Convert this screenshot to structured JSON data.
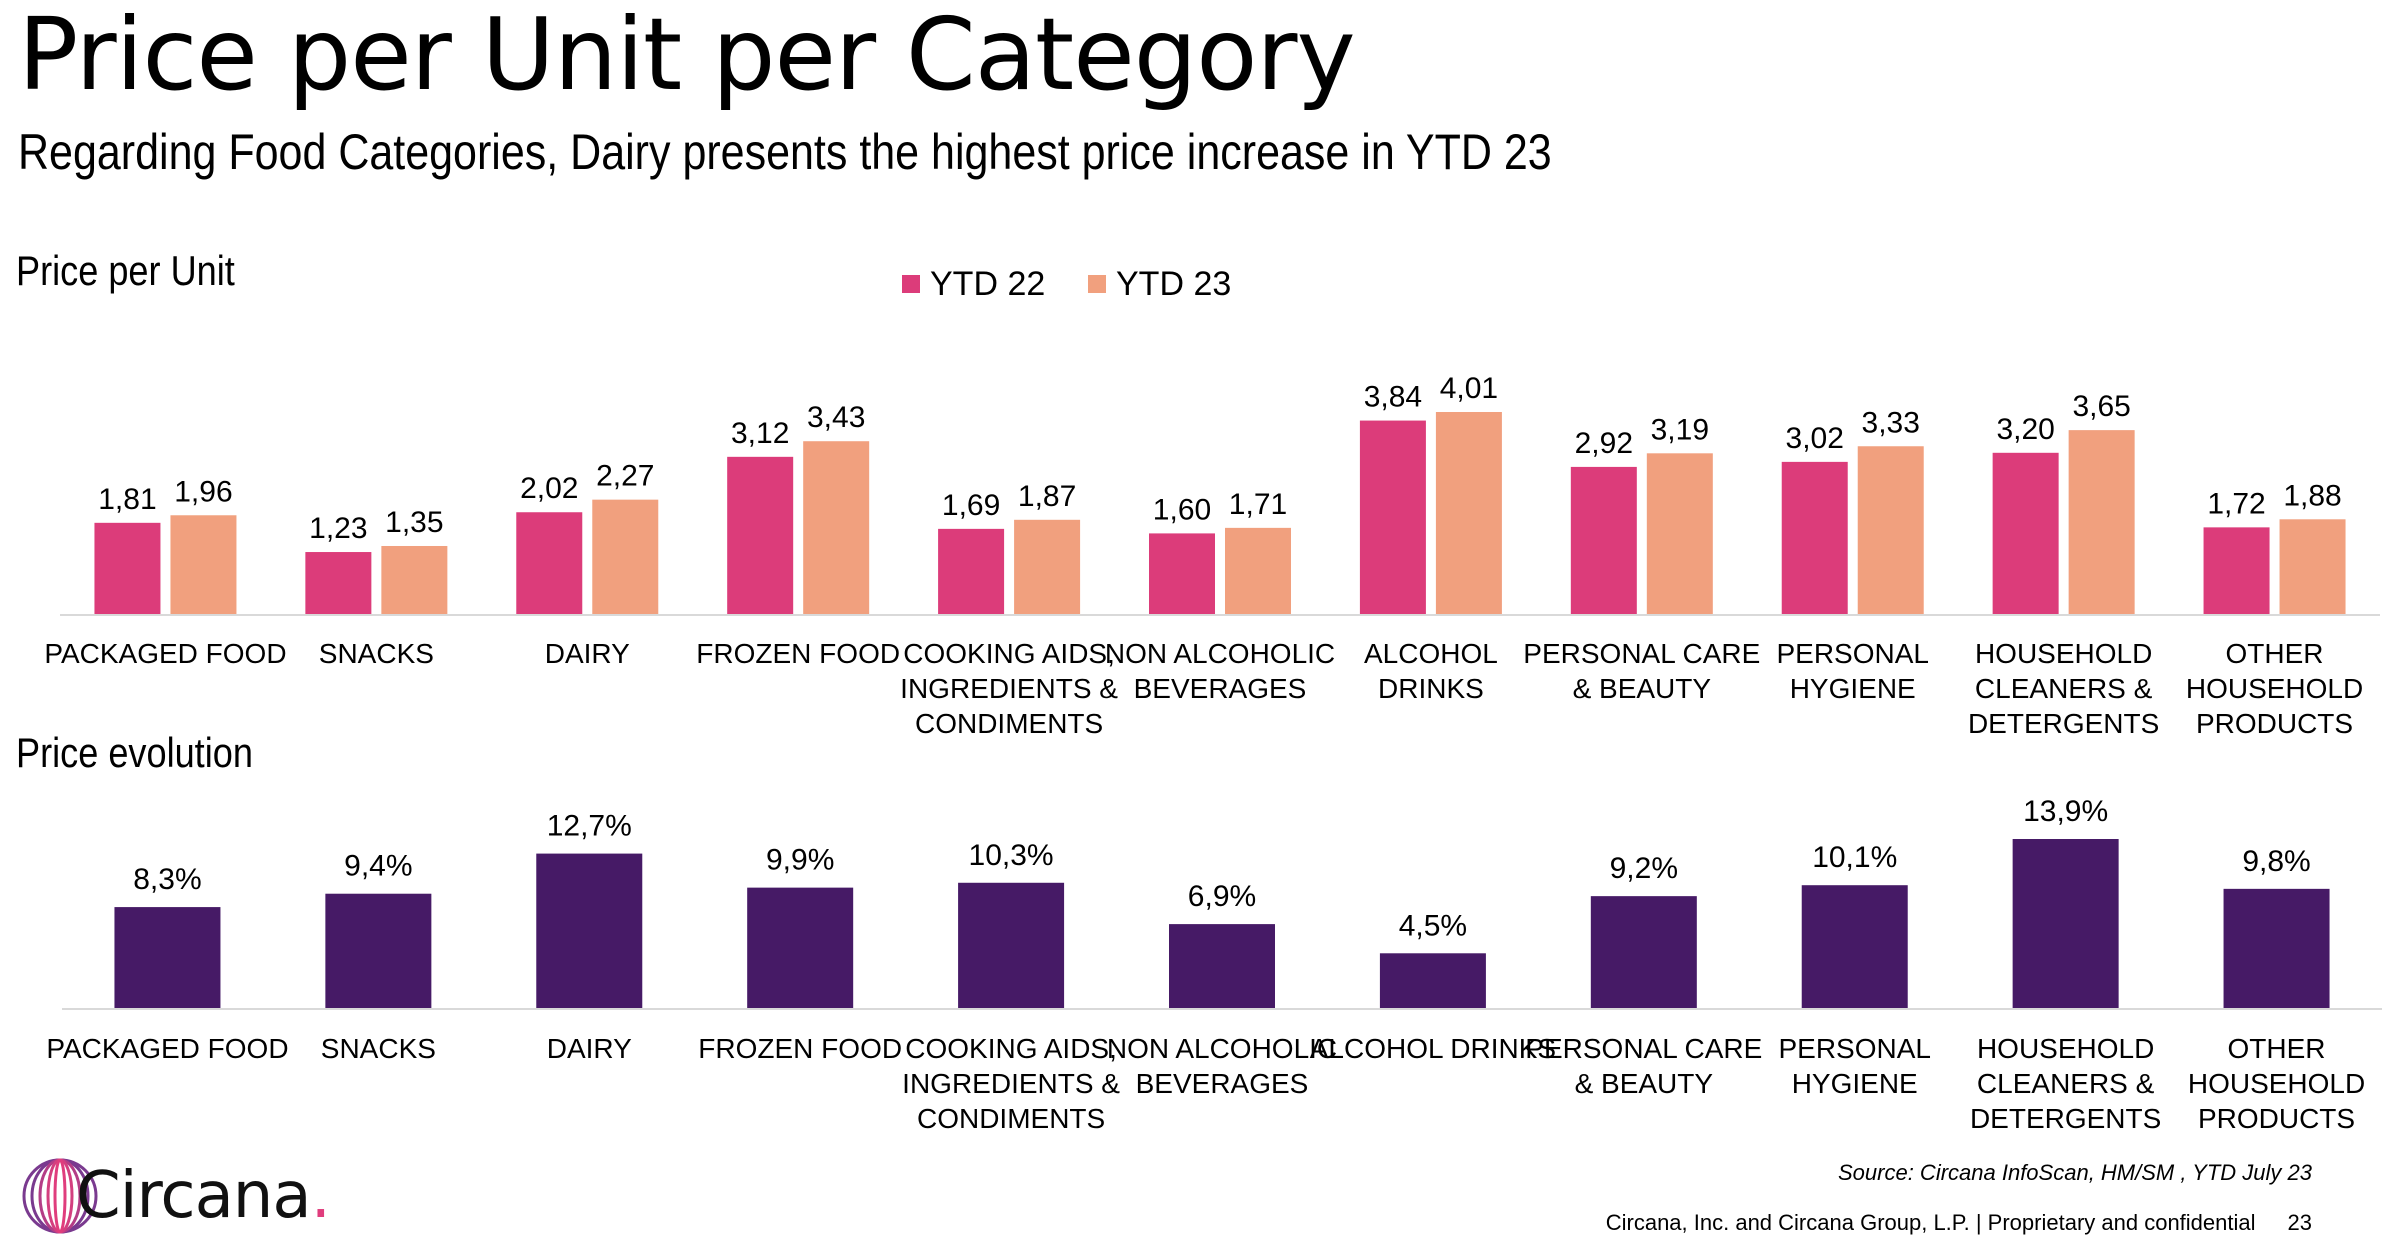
{
  "title": "Price per Unit per Category",
  "subtitle": "Regarding Food Categories, Dairy presents the highest price increase in YTD 23",
  "footer": {
    "source": "Source: Circana InfoScan, HM/SM , YTD July 23",
    "legal": "Circana, Inc. and Circana Group, L.P. |  Proprietary and confidential",
    "page": "23"
  },
  "logo": {
    "text": "Circana",
    "dot": ".",
    "icon": "circana-rings-logo-icon"
  },
  "colors": {
    "ytd22": "#dc3c7a",
    "ytd23": "#f1a07e",
    "evolution": "#461a66",
    "axis": "#d9d9d9",
    "logo_dot": "#e03d7d"
  },
  "chart_data": [
    {
      "type": "bar",
      "title": "Price per Unit",
      "legend": "top-center",
      "categories": [
        [
          "PACKAGED FOOD"
        ],
        [
          "SNACKS"
        ],
        [
          "DAIRY"
        ],
        [
          "FROZEN FOOD"
        ],
        [
          "COOKING AIDS,",
          "INGREDIENTS &",
          "CONDIMENTS"
        ],
        [
          "NON ALCOHOLIC",
          "BEVERAGES"
        ],
        [
          "ALCOHOL",
          "DRINKS"
        ],
        [
          "PERSONAL CARE",
          "& BEAUTY"
        ],
        [
          "PERSONAL",
          "HYGIENE"
        ],
        [
          "HOUSEHOLD",
          "CLEANERS &",
          "DETERGENTS"
        ],
        [
          "OTHER",
          "HOUSEHOLD",
          "PRODUCTS"
        ]
      ],
      "series": [
        {
          "name": "YTD 22",
          "values": [
            1.81,
            1.23,
            2.02,
            3.12,
            1.69,
            1.6,
            3.84,
            2.92,
            3.02,
            3.2,
            1.72
          ],
          "labels": [
            "1,81",
            "1,23",
            "2,02",
            "3,12",
            "1,69",
            "1,60",
            "3,84",
            "2,92",
            "3,02",
            "3,20",
            "1,72"
          ]
        },
        {
          "name": "YTD 23",
          "values": [
            1.96,
            1.35,
            2.27,
            3.43,
            1.87,
            1.71,
            4.01,
            3.19,
            3.33,
            3.65,
            1.88
          ],
          "labels": [
            "1,96",
            "1,35",
            "2,27",
            "3,43",
            "1,87",
            "1,71",
            "4,01",
            "3,19",
            "3,33",
            "3,65",
            "1,88"
          ]
        }
      ],
      "ylim": [
        0,
        4.5
      ],
      "grid": false
    },
    {
      "type": "bar",
      "title": "Price evolution",
      "categories": [
        [
          "PACKAGED FOOD"
        ],
        [
          "SNACKS"
        ],
        [
          "DAIRY"
        ],
        [
          "FROZEN FOOD"
        ],
        [
          "COOKING AIDS,",
          "INGREDIENTS &",
          "CONDIMENTS"
        ],
        [
          "NON ALCOHOLIC",
          "BEVERAGES"
        ],
        [
          "ALCOHOL DRINKS"
        ],
        [
          "PERSONAL CARE",
          "& BEAUTY"
        ],
        [
          "PERSONAL",
          "HYGIENE"
        ],
        [
          "HOUSEHOLD",
          "CLEANERS &",
          "DETERGENTS"
        ],
        [
          "OTHER",
          "HOUSEHOLD",
          "PRODUCTS"
        ]
      ],
      "series": [
        {
          "values": [
            8.3,
            9.4,
            12.7,
            9.9,
            10.3,
            6.9,
            4.5,
            9.2,
            10.1,
            13.9,
            9.8
          ],
          "labels": [
            "8,3%",
            "9,4%",
            "12,7%",
            "9,9%",
            "10,3%",
            "6,9%",
            "4,5%",
            "9,2%",
            "10,1%",
            "13,9%",
            "9,8%"
          ]
        }
      ],
      "ylim": [
        0,
        16
      ],
      "grid": false
    }
  ]
}
